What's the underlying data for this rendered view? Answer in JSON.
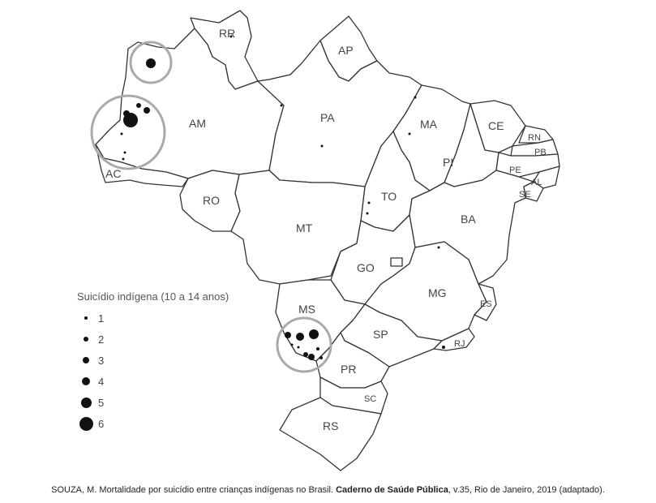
{
  "map": {
    "states": [
      {
        "id": "RR",
        "label": "RR"
      },
      {
        "id": "AP",
        "label": "AP"
      },
      {
        "id": "AM",
        "label": "AM"
      },
      {
        "id": "PA",
        "label": "PA"
      },
      {
        "id": "MA",
        "label": "MA"
      },
      {
        "id": "CE",
        "label": "CE"
      },
      {
        "id": "RN",
        "label": "RN"
      },
      {
        "id": "PB",
        "label": "PB"
      },
      {
        "id": "PI",
        "label": "PI"
      },
      {
        "id": "PE",
        "label": "PE"
      },
      {
        "id": "AL",
        "label": "AL"
      },
      {
        "id": "SE",
        "label": "SE"
      },
      {
        "id": "AC",
        "label": "AC"
      },
      {
        "id": "RO",
        "label": "RO"
      },
      {
        "id": "TO",
        "label": "TO"
      },
      {
        "id": "BA",
        "label": "BA"
      },
      {
        "id": "MT",
        "label": "MT"
      },
      {
        "id": "GO",
        "label": "GO"
      },
      {
        "id": "MG",
        "label": "MG"
      },
      {
        "id": "ES",
        "label": "ES"
      },
      {
        "id": "MS",
        "label": "MS"
      },
      {
        "id": "SP",
        "label": "SP"
      },
      {
        "id": "RJ",
        "label": "RJ"
      },
      {
        "id": "PR",
        "label": "PR"
      },
      {
        "id": "SC",
        "label": "SC"
      },
      {
        "id": "RS",
        "label": "RS"
      }
    ]
  },
  "legend": {
    "title": "Suicídio indígena (10 a 14 anos)",
    "items": [
      {
        "value": "1"
      },
      {
        "value": "2"
      },
      {
        "value": "3"
      },
      {
        "value": "4"
      },
      {
        "value": "5"
      },
      {
        "value": "6"
      }
    ]
  },
  "caption": {
    "prefix": "SOUZA, M. Mortalidade por suicídio entre crianças indígenas no Brasil. ",
    "journal": "Caderno de Saúde Pública",
    "suffix": ", v.35, Rio de Janeiro, 2019 (adaptado)."
  },
  "colors": {
    "outline": "#333333",
    "dot": "#111111",
    "cluster_ring": "#aaaaaa",
    "background": "#ffffff"
  }
}
